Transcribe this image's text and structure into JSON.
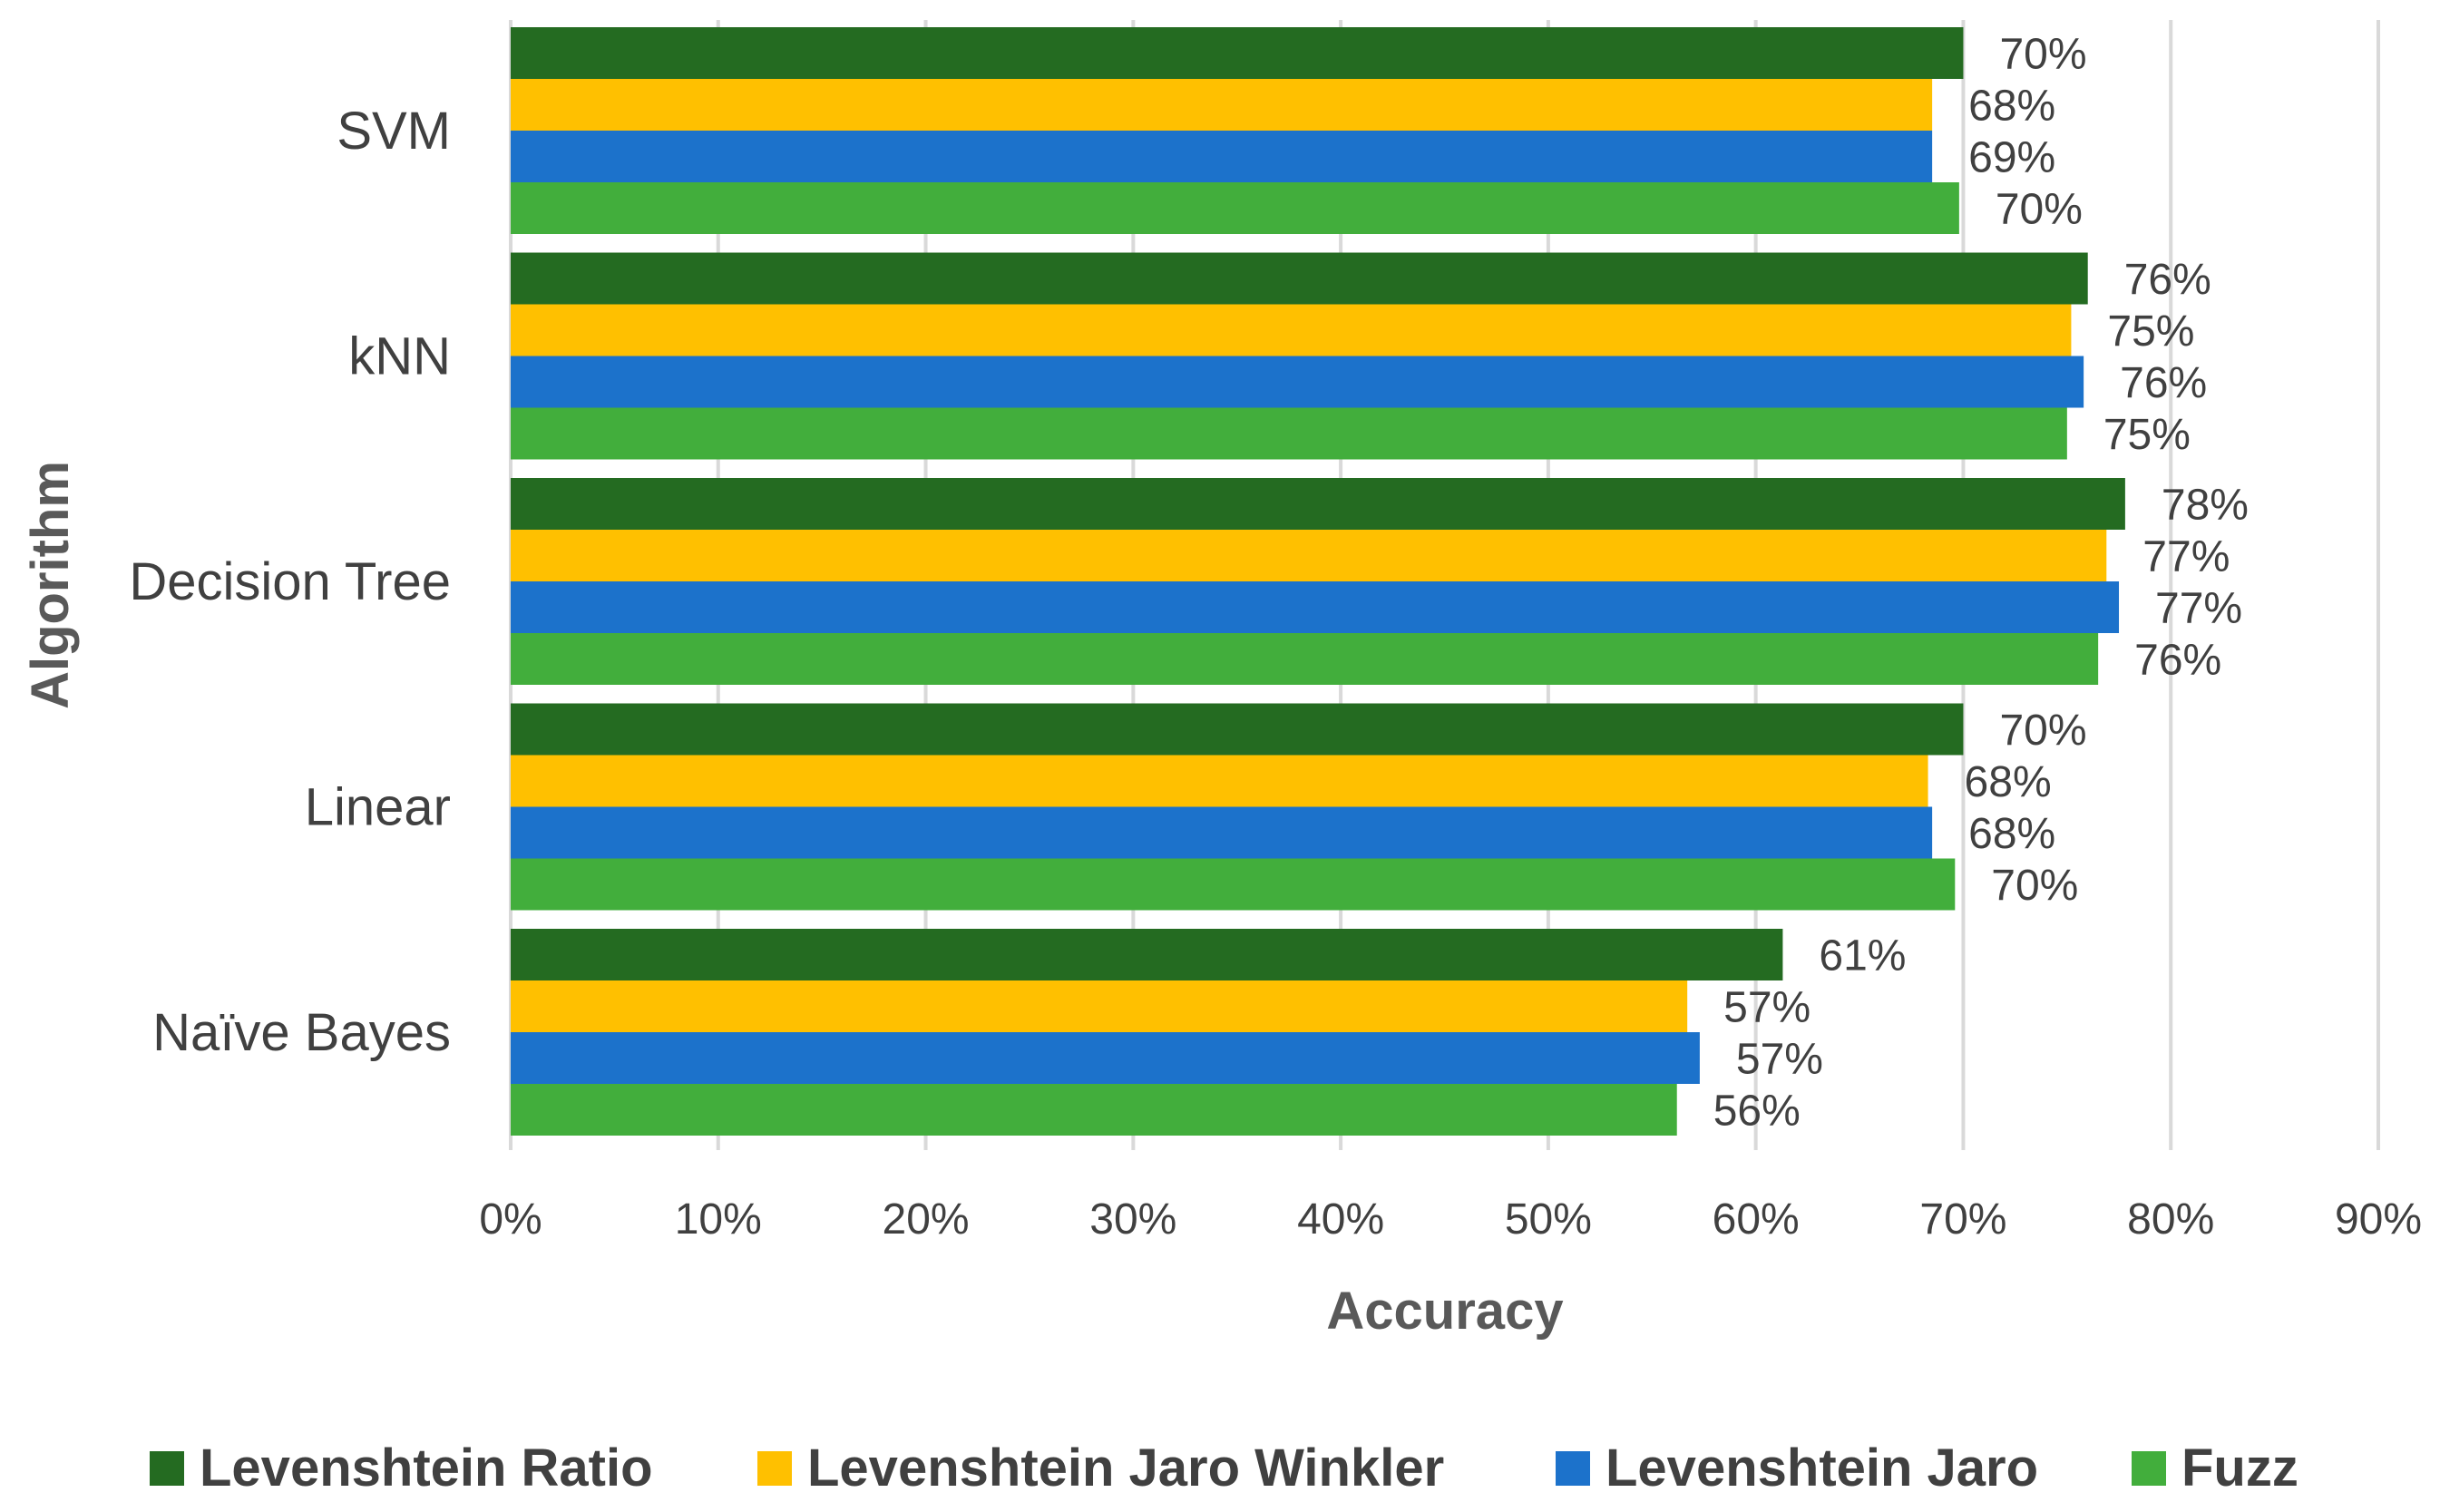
{
  "chart_data": {
    "type": "bar",
    "orientation": "horizontal",
    "title": "",
    "xlabel": "Accuracy",
    "ylabel": "Algorithm",
    "xlim": [
      0,
      90
    ],
    "x_ticks": [
      0,
      10,
      20,
      30,
      40,
      50,
      60,
      70,
      80,
      90
    ],
    "x_tick_labels": [
      "0%",
      "10%",
      "20%",
      "30%",
      "40%",
      "50%",
      "60%",
      "70%",
      "80%",
      "90%"
    ],
    "grid": true,
    "legend_position": "bottom",
    "categories": [
      "SVM",
      "kNN",
      "Decision Tree",
      "Linear",
      "Naïve Bayes"
    ],
    "series": [
      {
        "name": "Levenshtein Ratio",
        "color": "#246B21",
        "values": [
          70,
          76,
          77.8,
          70,
          61.3
        ],
        "labels": [
          "70%",
          "76%",
          "78%",
          "70%",
          "61%"
        ]
      },
      {
        "name": "Levenshtein Jaro Winkler",
        "color": "#FFC000",
        "values": [
          68.5,
          75.2,
          76.9,
          68.3,
          56.7
        ],
        "labels": [
          "68%",
          "75%",
          "77%",
          "68%",
          "57%"
        ]
      },
      {
        "name": "Levenshtein Jaro",
        "color": "#1C72CB",
        "values": [
          68.5,
          75.8,
          77.5,
          68.5,
          57.3
        ],
        "labels": [
          "69%",
          "76%",
          "77%",
          "68%",
          "57%"
        ]
      },
      {
        "name": "Fuzz",
        "color": "#42AE3C",
        "values": [
          69.8,
          75,
          76.5,
          69.6,
          56.2
        ],
        "labels": [
          "70%",
          "75%",
          "76%",
          "70%",
          "56%"
        ]
      }
    ]
  }
}
